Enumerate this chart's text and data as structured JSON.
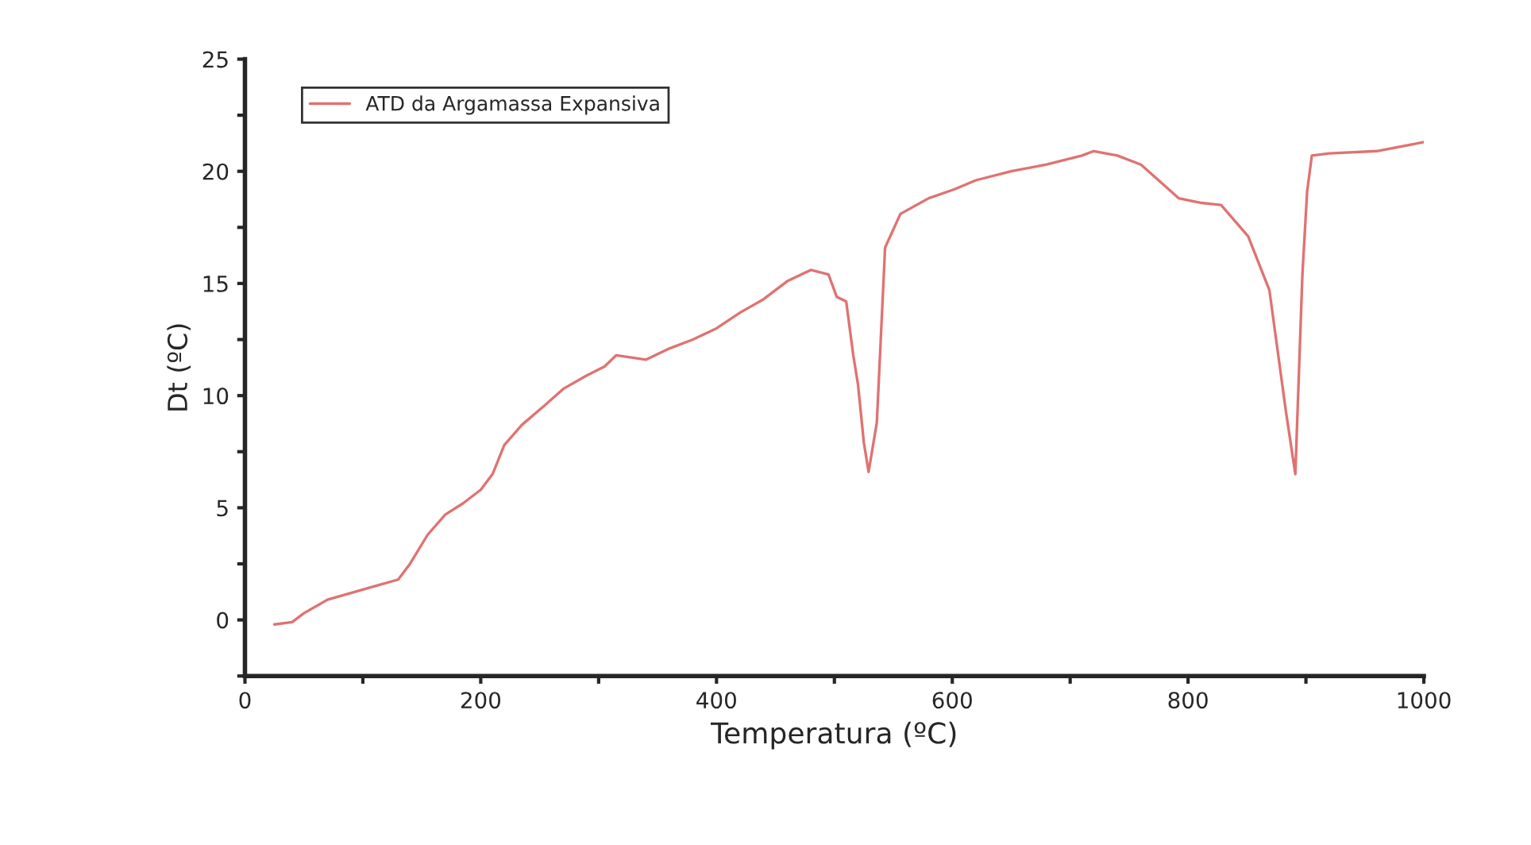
{
  "chart_data": {
    "type": "line",
    "xlabel": "Temperatura (ºC)",
    "ylabel": "Dt (ºC)",
    "x": [
      25,
      40,
      50,
      70,
      90,
      110,
      130,
      140,
      155,
      170,
      185,
      200,
      210,
      220,
      235,
      255,
      270,
      290,
      305,
      315,
      340,
      360,
      380,
      400,
      420,
      440,
      460,
      480,
      495,
      502,
      510,
      516,
      520,
      525,
      529,
      536,
      543,
      556,
      580,
      602,
      620,
      650,
      680,
      710,
      720,
      740,
      760,
      775,
      792,
      810,
      828,
      851,
      869,
      883,
      891,
      897,
      901,
      905,
      920,
      960,
      1000
    ],
    "series": [
      {
        "name": "ATD da Argamassa Expansiva",
        "color": "#e07272",
        "values": [
          -0.2,
          -0.1,
          0.3,
          0.9,
          1.2,
          1.5,
          1.8,
          2.5,
          3.8,
          4.7,
          5.2,
          5.8,
          6.5,
          7.8,
          8.7,
          9.6,
          10.3,
          10.9,
          11.3,
          11.8,
          11.6,
          12.1,
          12.5,
          13.0,
          13.7,
          14.3,
          15.1,
          15.6,
          15.4,
          14.4,
          14.2,
          11.8,
          10.5,
          7.9,
          6.6,
          8.8,
          16.6,
          18.1,
          18.8,
          19.2,
          19.6,
          20.0,
          20.3,
          20.7,
          20.9,
          20.7,
          20.3,
          19.6,
          18.8,
          18.6,
          18.5,
          17.1,
          14.7,
          9.3,
          6.5,
          15.4,
          19.1,
          20.7,
          20.8,
          20.9,
          21.3
        ]
      }
    ],
    "xlim": [
      0,
      1000
    ],
    "ylim": [
      -2.5,
      25
    ],
    "xticks": [
      0,
      {
        "value": 100,
        "label": null
      },
      200,
      {
        "value": 300,
        "label": null
      },
      400,
      {
        "value": 500,
        "label": null
      },
      600,
      {
        "value": 700,
        "label": null
      },
      800,
      {
        "value": 900,
        "label": null
      },
      1000
    ],
    "yticks": [
      {
        "value": -2.5,
        "label": null
      },
      0,
      {
        "value": 2.5,
        "label": null
      },
      5,
      {
        "value": 7.5,
        "label": null
      },
      10,
      {
        "value": 12.5,
        "label": null
      },
      15,
      {
        "value": 17.5,
        "label": null
      },
      20,
      {
        "value": 22.5,
        "label": null
      },
      25
    ],
    "grid": false,
    "legend": "top left",
    "marker": "none",
    "line_style": "solid"
  }
}
